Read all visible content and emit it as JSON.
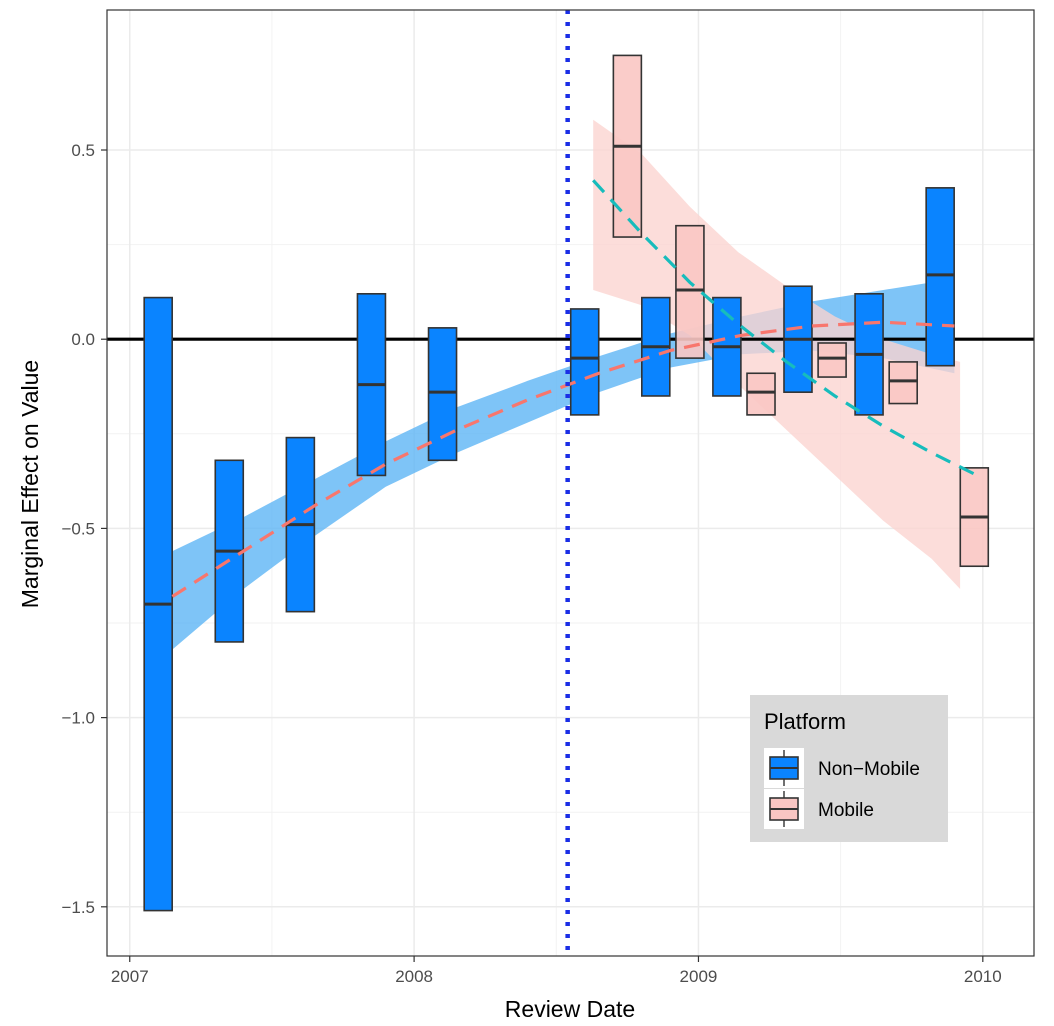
{
  "chart_data": {
    "type": "box",
    "xlabel": "Review Date",
    "ylabel": "Marginal Effect on Value",
    "xlim": [
      2006.92,
      2010.18
    ],
    "ylim": [
      -1.63,
      0.87
    ],
    "x_ticks": [
      {
        "value": 2007,
        "label": "2007"
      },
      {
        "value": 2008,
        "label": "2008"
      },
      {
        "value": 2009,
        "label": "2009"
      },
      {
        "value": 2010,
        "label": "2010"
      }
    ],
    "y_ticks": [
      {
        "value": 0.5,
        "label": "0.5"
      },
      {
        "value": 0.0,
        "label": "0.0"
      },
      {
        "value": -0.5,
        "label": "-0.5"
      },
      {
        "value": -1.0,
        "label": "-1.0"
      },
      {
        "value": -1.5,
        "label": "-1.5"
      }
    ],
    "grid": true,
    "reference_hline": 0.0,
    "vline": {
      "x": "2008-07",
      "value": 2008.54,
      "style": "dotted",
      "color": "#1a2ee6"
    },
    "legend": {
      "title": "Platform",
      "position": "bottom-right",
      "entries": [
        {
          "label": "Non−Mobile",
          "fill": "#0a84ff"
        },
        {
          "label": "Mobile",
          "fill": "#f9c6c3"
        }
      ]
    },
    "series": [
      {
        "name": "Non−Mobile",
        "fill": "#0a84ff",
        "boxes": [
          {
            "x": 2007.1,
            "low": -1.51,
            "mid": -0.7,
            "high": 0.11
          },
          {
            "x": 2007.35,
            "low": -0.8,
            "mid": -0.56,
            "high": -0.32
          },
          {
            "x": 2007.6,
            "low": -0.72,
            "mid": -0.49,
            "high": -0.26
          },
          {
            "x": 2007.85,
            "low": -0.36,
            "mid": -0.12,
            "high": 0.12
          },
          {
            "x": 2008.1,
            "low": -0.32,
            "mid": -0.14,
            "high": 0.03
          },
          {
            "x": 2008.6,
            "low": -0.2,
            "mid": -0.05,
            "high": 0.08
          },
          {
            "x": 2008.85,
            "low": -0.15,
            "mid": -0.02,
            "high": 0.11
          },
          {
            "x": 2009.1,
            "low": -0.15,
            "mid": -0.02,
            "high": 0.11
          },
          {
            "x": 2009.35,
            "low": -0.14,
            "mid": 0.0,
            "high": 0.14
          },
          {
            "x": 2009.6,
            "low": -0.2,
            "mid": -0.04,
            "high": 0.12
          },
          {
            "x": 2009.85,
            "low": -0.07,
            "mid": 0.17,
            "high": 0.4
          }
        ],
        "trend": {
          "color": "#f8766d",
          "dash": "dashed",
          "x": [
            2007.15,
            2007.4,
            2007.65,
            2007.9,
            2008.15,
            2008.4,
            2008.65,
            2008.9,
            2009.15,
            2009.4,
            2009.65,
            2009.9
          ],
          "y": [
            -0.68,
            -0.56,
            -0.44,
            -0.33,
            -0.24,
            -0.16,
            -0.09,
            -0.03,
            0.01,
            0.035,
            0.045,
            0.035
          ]
        },
        "ribbon": {
          "color": "#5ab4f5",
          "upper": [
            -0.56,
            -0.47,
            -0.37,
            -0.27,
            -0.18,
            -0.11,
            -0.045,
            0.015,
            0.06,
            0.1,
            0.13,
            0.16
          ],
          "lower": [
            -0.82,
            -0.66,
            -0.52,
            -0.39,
            -0.3,
            -0.22,
            -0.14,
            -0.075,
            -0.04,
            -0.03,
            -0.05,
            -0.09
          ]
        }
      },
      {
        "name": "Mobile",
        "fill": "#f9c6c3",
        "boxes": [
          {
            "x": 2008.75,
            "low": 0.27,
            "mid": 0.51,
            "high": 0.75
          },
          {
            "x": 2008.97,
            "low": -0.05,
            "mid": 0.13,
            "high": 0.3
          },
          {
            "x": 2009.22,
            "low": -0.2,
            "mid": -0.14,
            "high": -0.09
          },
          {
            "x": 2009.47,
            "low": -0.1,
            "mid": -0.05,
            "high": -0.01
          },
          {
            "x": 2009.72,
            "low": -0.17,
            "mid": -0.11,
            "high": -0.06
          },
          {
            "x": 2009.97,
            "low": -0.6,
            "mid": -0.47,
            "high": -0.34
          }
        ],
        "trend": {
          "color": "#17bcbc",
          "dash": "dashed",
          "x": [
            2008.63,
            2008.8,
            2008.97,
            2009.14,
            2009.31,
            2009.48,
            2009.65,
            2009.82,
            2009.98
          ],
          "y": [
            0.42,
            0.28,
            0.15,
            0.04,
            -0.06,
            -0.15,
            -0.23,
            -0.3,
            -0.36
          ]
        },
        "ribbon": {
          "color": "#fbd3d0",
          "x": [
            2008.63,
            2008.8,
            2008.97,
            2009.14,
            2009.31,
            2009.48,
            2009.65,
            2009.82,
            2009.92
          ],
          "upper": [
            0.58,
            0.49,
            0.35,
            0.23,
            0.14,
            0.06,
            0.0,
            -0.04,
            -0.06
          ],
          "lower": [
            0.13,
            0.09,
            0.01,
            -0.12,
            -0.24,
            -0.36,
            -0.48,
            -0.58,
            -0.66
          ]
        }
      }
    ]
  }
}
